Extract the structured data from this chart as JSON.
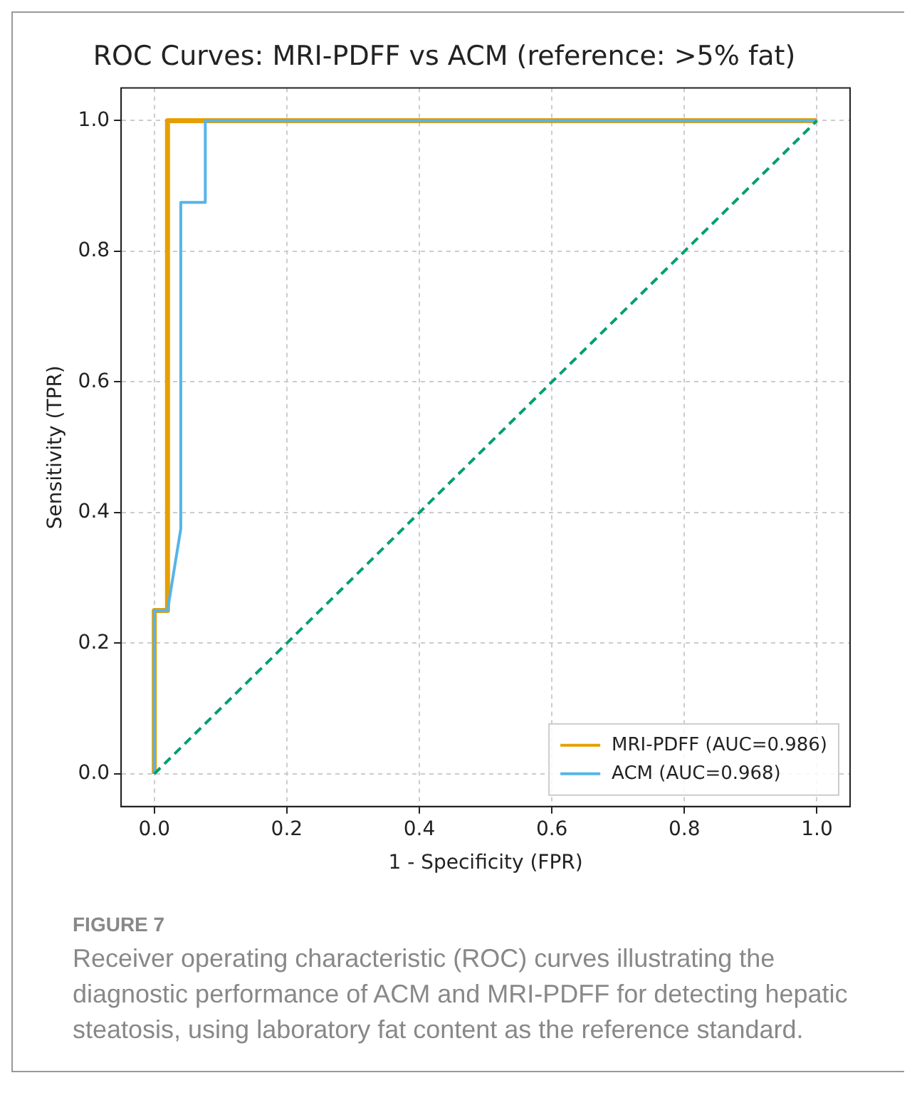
{
  "chart_data": {
    "type": "line",
    "title": "ROC Curves: MRI-PDFF vs ACM (reference: >5% fat)",
    "xlabel": "1 - Specificity (FPR)",
    "ylabel": "Sensitivity (TPR)",
    "series": [
      {
        "name": "MRI-PDFF (AUC=0.986)",
        "color": "#e69f00",
        "x": [
          0,
          0,
          0.02,
          0.02,
          1
        ],
        "values": [
          0,
          0.25,
          0.25,
          1,
          1
        ]
      },
      {
        "name": "ACM (AUC=0.968)",
        "color": "#56b4e9",
        "x": [
          0,
          0,
          0.02,
          0.04,
          0.04,
          0.077,
          0.077,
          1
        ],
        "values": [
          0,
          0.25,
          0.25,
          0.375,
          0.875,
          0.875,
          1,
          1
        ]
      },
      {
        "color": "#009e73",
        "x": [
          0,
          1
        ],
        "values": [
          0,
          1
        ],
        "line_style": "dashed"
      }
    ],
    "xlim": [
      -0.05,
      1.05
    ],
    "ylim": [
      -0.05,
      1.05
    ],
    "xticks": [
      {
        "value": 0,
        "label": "0.0"
      },
      {
        "value": 0.2,
        "label": "0.2"
      },
      {
        "value": 0.4,
        "label": "0.4"
      },
      {
        "value": 0.6,
        "label": "0.6"
      },
      {
        "value": 0.8,
        "label": "0.8"
      },
      {
        "value": 1,
        "label": "1.0"
      }
    ],
    "yticks": [
      {
        "value": 0,
        "label": "0.0"
      },
      {
        "value": 0.2,
        "label": "0.2"
      },
      {
        "value": 0.4,
        "label": "0.4"
      },
      {
        "value": 0.6,
        "label": "0.6"
      },
      {
        "value": 0.8,
        "label": "0.8"
      },
      {
        "value": 1,
        "label": "1.0"
      }
    ],
    "grid": true,
    "legend": "bottom right",
    "marker": "none",
    "annotations": [
      "FIGURE 7",
      "Receiver operating characteristic (ROC) curves illustrating the diagnostic performance of ACM and MRI-PDFF for detecting hepatic steatosis, using laboratory fat content as the reference standard."
    ]
  }
}
